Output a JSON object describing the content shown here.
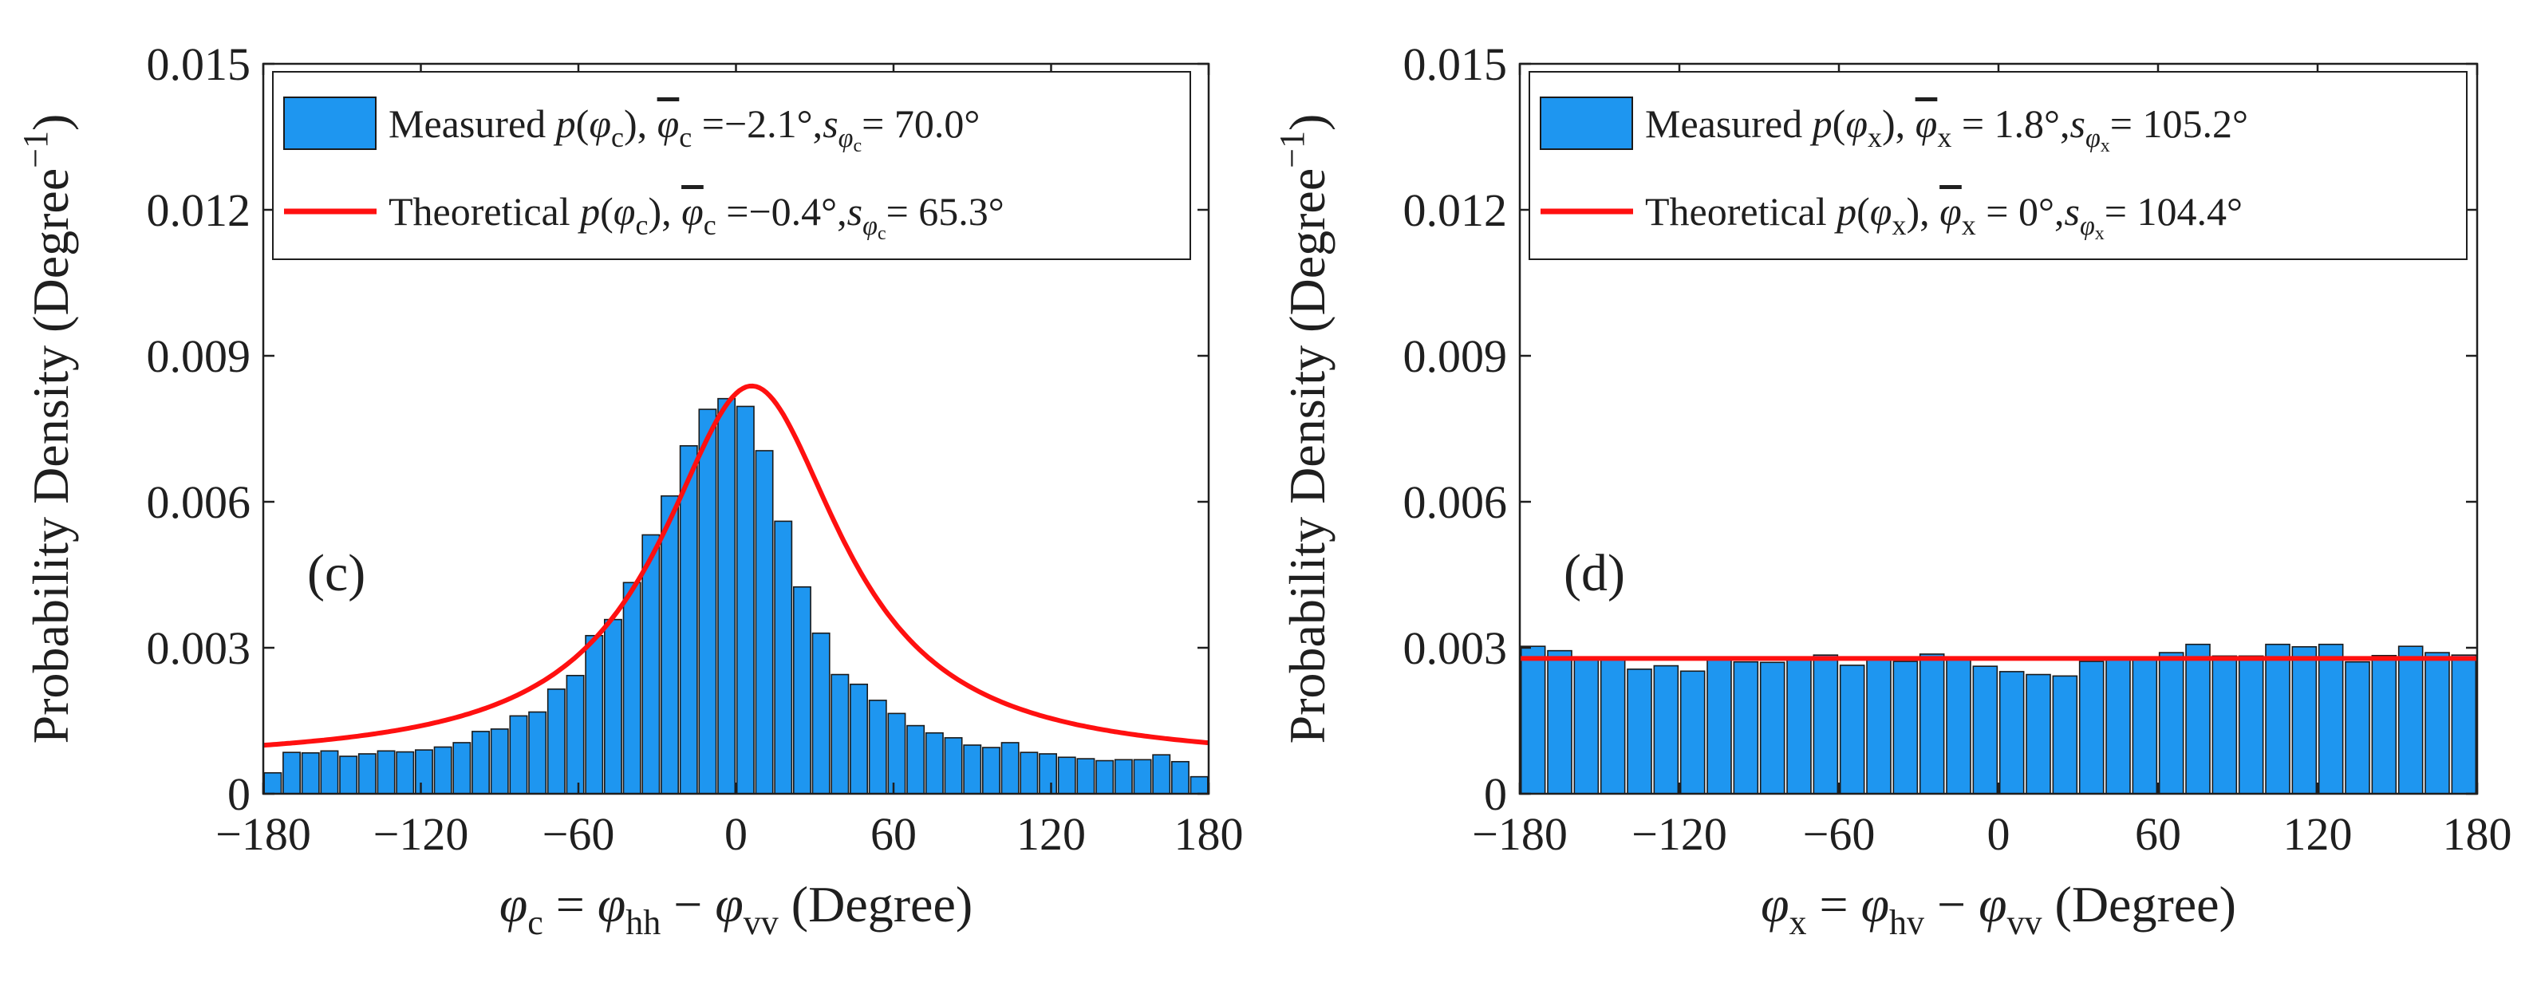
{
  "chart_data": [
    {
      "type": "bar",
      "panel_label": "(c)",
      "xlabel": {
        "phi": "φ",
        "sub_c": "c",
        "eq": " = ",
        "sub_hh": "hh",
        "minus": " − ",
        "sub_vv": "vv",
        "unit": " (Degree)"
      },
      "ylabel": {
        "text": "Probability Density (Degree",
        "exponent": "−1",
        "close": ")"
      },
      "xlim": [
        -180,
        180
      ],
      "ylim": [
        0,
        0.015
      ],
      "xticks": [
        "−180",
        "−120",
        "−60",
        "0",
        "60",
        "120",
        "180"
      ],
      "xtick_values": [
        -180,
        -120,
        -60,
        0,
        60,
        120,
        180
      ],
      "yticks": [
        "0",
        "0.003",
        "0.006",
        "0.009",
        "0.012",
        "0.015"
      ],
      "ytick_values": [
        0,
        0.003,
        0.006,
        0.009,
        0.012,
        0.015
      ],
      "bin_width": 7.2,
      "bin_start": -180,
      "values": [
        0.00043,
        0.00085,
        0.00084,
        0.00088,
        0.00077,
        0.00082,
        0.00088,
        0.00086,
        0.0009,
        0.00096,
        0.00105,
        0.00128,
        0.00133,
        0.0016,
        0.00168,
        0.00215,
        0.00243,
        0.00325,
        0.00358,
        0.00434,
        0.00532,
        0.00612,
        0.00715,
        0.0079,
        0.00812,
        0.00796,
        0.00705,
        0.0056,
        0.00425,
        0.0033,
        0.00245,
        0.00225,
        0.00192,
        0.00165,
        0.0014,
        0.00125,
        0.00115,
        0.001,
        0.00095,
        0.00105,
        0.00085,
        0.00082,
        0.00075,
        0.00072,
        0.00068,
        0.0007,
        0.0007,
        0.0008,
        0.00066,
        0.00035
      ],
      "theory_mean": -0.4,
      "theory_sd": 65.3,
      "legend_position": "top",
      "legend": [
        {
          "symbol": "bar",
          "word": "Measured ",
          "p": "p",
          "open": "(",
          "phi": "φ",
          "sub": "c",
          "close": "), ",
          "mean_sym": "φ",
          "mean_sub": "c",
          "mean_val": " =−2.1°,",
          "s": "s",
          "s_sub": "φ",
          "s_subsub": "c",
          "s_val": "= 70.0°"
        },
        {
          "symbol": "line",
          "word": "Theoretical ",
          "p": "p",
          "open": "(",
          "phi": "φ",
          "sub": "c",
          "close": "), ",
          "mean_sym": "φ",
          "mean_sub": "c",
          "mean_val": " =−0.4°,",
          "s": "s",
          "s_sub": "φ",
          "s_subsub": "c",
          "s_val": "= 65.3°"
        }
      ]
    },
    {
      "type": "bar",
      "panel_label": "(d)",
      "xlabel": {
        "phi": "φ",
        "sub_c": "x",
        "eq": " = ",
        "sub_hh": "hv",
        "minus": " − ",
        "sub_vv": "vv",
        "unit": " (Degree)"
      },
      "ylabel": {
        "text": "Probability Density (Degree",
        "exponent": "−1",
        "close": ")"
      },
      "xlim": [
        -180,
        180
      ],
      "ylim": [
        0,
        0.015
      ],
      "xticks": [
        "−180",
        "−120",
        "−60",
        "0",
        "60",
        "120",
        "180"
      ],
      "xtick_values": [
        -180,
        -120,
        -60,
        0,
        60,
        120,
        180
      ],
      "yticks": [
        "0",
        "0.003",
        "0.006",
        "0.009",
        "0.012",
        "0.015"
      ],
      "ytick_values": [
        0,
        0.003,
        0.006,
        0.009,
        0.012,
        0.015
      ],
      "bin_width": 10,
      "bin_start": -180,
      "values": [
        0.00303,
        0.00294,
        0.00279,
        0.0028,
        0.00256,
        0.00263,
        0.00252,
        0.00276,
        0.00271,
        0.0027,
        0.00281,
        0.00285,
        0.00264,
        0.00278,
        0.00272,
        0.00287,
        0.00275,
        0.00262,
        0.00251,
        0.00245,
        0.00242,
        0.00272,
        0.00276,
        0.0028,
        0.0029,
        0.00307,
        0.00283,
        0.00283,
        0.00307,
        0.00302,
        0.00307,
        0.00271,
        0.00284,
        0.00303,
        0.0029,
        0.00285
      ],
      "theory_value": 0.00278,
      "legend_position": "top",
      "legend": [
        {
          "symbol": "bar",
          "word": "Measured ",
          "p": "p",
          "open": "(",
          "phi": "φ",
          "sub": "x",
          "close": "), ",
          "mean_sym": "φ",
          "mean_sub": "x",
          "mean_val": " = 1.8°,",
          "s": "s",
          "s_sub": "φ",
          "s_subsub": "x",
          "s_val": "= 105.2°"
        },
        {
          "symbol": "line",
          "word": "Theoretical ",
          "p": "p",
          "open": "(",
          "phi": "φ",
          "sub": "x",
          "close": "), ",
          "mean_sym": "φ",
          "mean_sub": "x",
          "mean_val": " = 0°,",
          "s": "s",
          "s_sub": "φ",
          "s_subsub": "x",
          "s_val": "= 104.4°"
        }
      ]
    }
  ],
  "colors": {
    "bar_fill": "#1e96f0",
    "bar_edge": "#1a1a1a",
    "theory_line": "#ff1010",
    "axis": "#1f1f1f"
  }
}
